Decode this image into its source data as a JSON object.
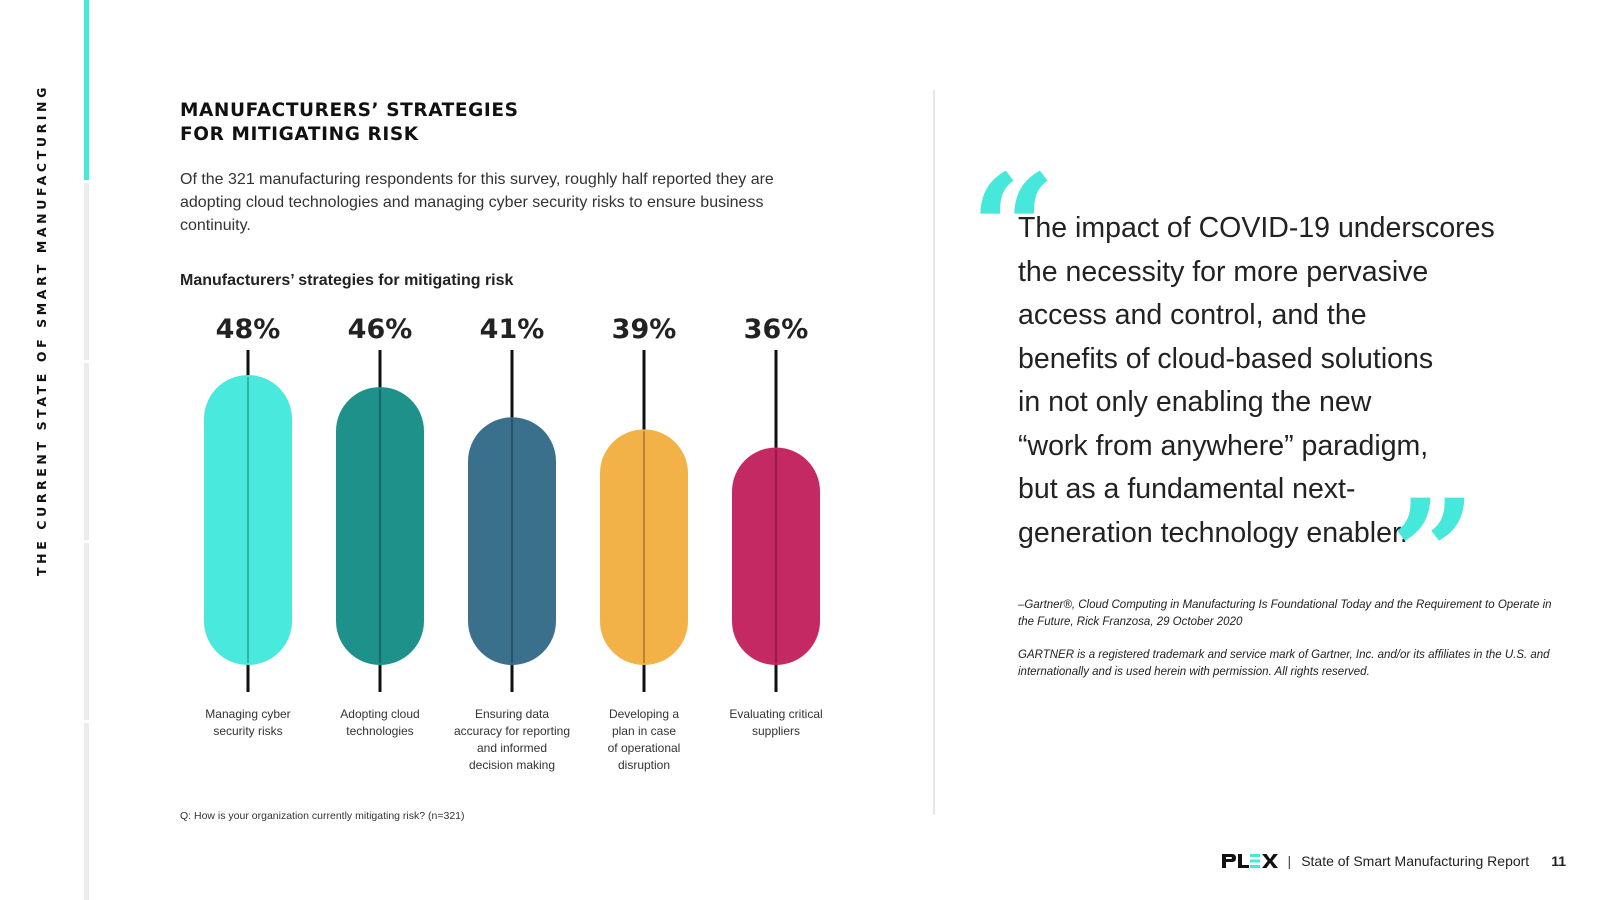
{
  "sidebar": {
    "label": "THE CURRENT STATE OF SMART MANUFACTURING"
  },
  "heading": {
    "line1": "MANUFACTURERS’ STRATEGIES",
    "line2": "FOR MITIGATING RISK"
  },
  "intro": "Of the 321 manufacturing respondents for this survey, roughly half reported they are adopting cloud technologies and managing cyber security risks to ensure business continuity.",
  "chart_data": {
    "type": "bar",
    "title": "Manufacturers’ strategies for mitigating risk",
    "categories": [
      [
        "Managing cyber",
        "security risks"
      ],
      [
        "Adopting cloud",
        "technologies"
      ],
      [
        "Ensuring data",
        "accuracy for reporting",
        "and informed",
        "decision making"
      ],
      [
        "Developing a",
        "plan in case",
        "of operational",
        "disruption"
      ],
      [
        "Evaluating critical",
        "suppliers"
      ]
    ],
    "values": [
      48,
      46,
      41,
      39,
      36
    ],
    "value_labels": [
      "48%",
      "46%",
      "41%",
      "39%",
      "36%"
    ],
    "colors": [
      "#45eadc",
      "#198f89",
      "#366d89",
      "#f3b043",
      "#c42561"
    ],
    "ylim": [
      0,
      48
    ],
    "footnote": "Q: How is your organization currently mitigating risk? (n=321)"
  },
  "quote": {
    "lines": [
      "The impact of COVID-19 underscores",
      "the necessity for more pervasive",
      "access and control, and the",
      "benefits of cloud-based solutions",
      "in not only enabling the new",
      "“work from anywhere” paradigm,",
      "but as a fundamental next-",
      "generation technology enabler."
    ],
    "open_mark": "“",
    "close_mark": "”",
    "citation": "–Gartner®, Cloud Computing in Manufacturing Is Foundational Today and the Requirement to Operate in the Future, Rick Franzosa, 29 October 2020",
    "trademark": "GARTNER is a registered trademark and service mark of Gartner, Inc. and/or its affiliates in the U.S. and internationally and is used herein with permission. All rights reserved."
  },
  "footer": {
    "logo": "PLEX",
    "separator": "|",
    "report": "State of Smart Manufacturing Report",
    "page": "11"
  },
  "colors": {
    "accent": "#45e8da",
    "logo_accent": "#45e8da"
  }
}
